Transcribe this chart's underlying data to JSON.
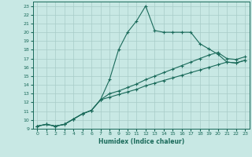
{
  "xlabel": "Humidex (Indice chaleur)",
  "bg_color": "#c8e8e4",
  "grid_color": "#a8ccc8",
  "line_color": "#1a6a5a",
  "spine_color": "#1a6a5a",
  "xlim": [
    -0.5,
    23.5
  ],
  "ylim": [
    9,
    23.5
  ],
  "xticks": [
    0,
    1,
    2,
    3,
    4,
    5,
    6,
    7,
    8,
    9,
    10,
    11,
    12,
    13,
    14,
    15,
    16,
    17,
    18,
    19,
    20,
    21,
    22,
    23
  ],
  "yticks": [
    9,
    10,
    11,
    12,
    13,
    14,
    15,
    16,
    17,
    18,
    19,
    20,
    21,
    22,
    23
  ],
  "line1_x": [
    0,
    1,
    2,
    3,
    4,
    5,
    6,
    7,
    8,
    9,
    10,
    11,
    12,
    13,
    14,
    15,
    16,
    17,
    18,
    19,
    20,
    21,
    22,
    23
  ],
  "line1_y": [
    9.3,
    9.5,
    9.3,
    9.5,
    10.1,
    10.7,
    11.1,
    12.3,
    14.6,
    18.0,
    20.0,
    21.3,
    23.0,
    20.2,
    20.0,
    20.0,
    20.0,
    20.0,
    18.7,
    18.1,
    17.5,
    16.6,
    16.5,
    16.8
  ],
  "line2_x": [
    0,
    1,
    2,
    3,
    4,
    5,
    6,
    7,
    8,
    9,
    10,
    11,
    12,
    13,
    14,
    15,
    16,
    17,
    18,
    19,
    20,
    21,
    22,
    23
  ],
  "line2_y": [
    9.3,
    9.5,
    9.3,
    9.5,
    10.1,
    10.7,
    11.1,
    12.3,
    13.0,
    13.3,
    13.7,
    14.1,
    14.6,
    15.0,
    15.4,
    15.8,
    16.2,
    16.6,
    17.0,
    17.4,
    17.7,
    17.0,
    16.9,
    17.2
  ],
  "line3_x": [
    0,
    1,
    2,
    3,
    4,
    5,
    6,
    7,
    8,
    9,
    10,
    11,
    12,
    13,
    14,
    15,
    16,
    17,
    18,
    19,
    20,
    21,
    22,
    23
  ],
  "line3_y": [
    9.3,
    9.5,
    9.3,
    9.5,
    10.1,
    10.7,
    11.1,
    12.3,
    12.6,
    12.9,
    13.2,
    13.5,
    13.9,
    14.2,
    14.5,
    14.8,
    15.1,
    15.4,
    15.7,
    16.0,
    16.3,
    16.6,
    16.5,
    16.8
  ]
}
